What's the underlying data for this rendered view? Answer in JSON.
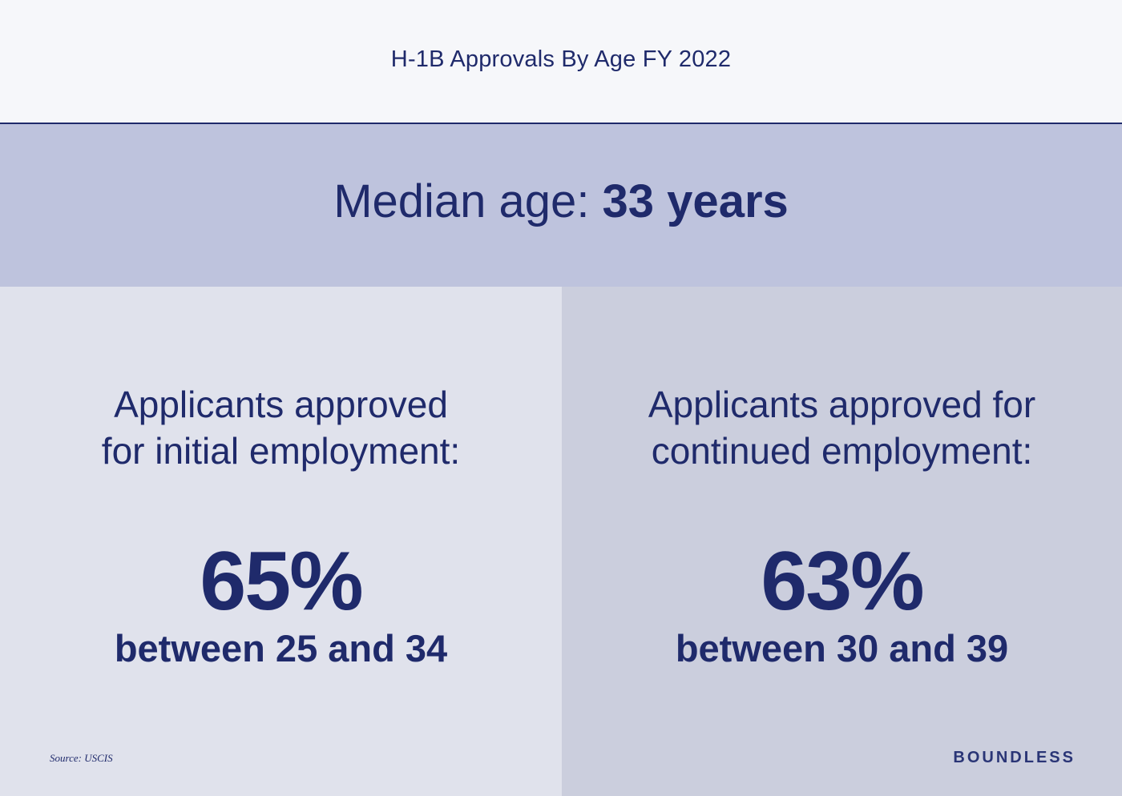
{
  "header": {
    "title": "H-1B Approvals By Age FY 2022"
  },
  "median": {
    "label": "Median age: ",
    "value": "33 years"
  },
  "panels": [
    {
      "heading_line1": "Applicants approved",
      "heading_line2": "for initial employment:",
      "percent": "65%",
      "range": "between 25 and 34"
    },
    {
      "heading_line1": "Applicants approved for",
      "heading_line2": "continued employment:",
      "percent": "63%",
      "range": "between 30 and 39"
    }
  ],
  "footer": {
    "source": "Source: USCIS",
    "logo": "BOUNDLESS"
  },
  "colors": {
    "navy": "#1f2a6b",
    "header_bg": "#f6f7fa",
    "median_band_bg": "#bec3dd",
    "left_panel_bg": "#e0e2ec",
    "right_panel_bg": "#cbcedd"
  }
}
